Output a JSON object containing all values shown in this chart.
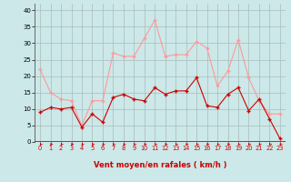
{
  "x": [
    0,
    1,
    2,
    3,
    4,
    5,
    6,
    7,
    8,
    9,
    10,
    11,
    12,
    13,
    14,
    15,
    16,
    17,
    18,
    19,
    20,
    21,
    22,
    23
  ],
  "wind_mean": [
    9,
    10.5,
    10,
    10.5,
    4.5,
    8.5,
    6,
    13.5,
    14.5,
    13,
    12.5,
    16.5,
    14.5,
    15.5,
    15.5,
    19.5,
    11,
    10.5,
    14.5,
    16.5,
    9.5,
    13,
    7,
    1
  ],
  "wind_gust": [
    22,
    15,
    13,
    12.5,
    5,
    12.5,
    12.5,
    27,
    26,
    26,
    31.5,
    37,
    26,
    26.5,
    26.5,
    30.5,
    28.5,
    17,
    21.5,
    31,
    19.5,
    12.5,
    8.5,
    8.5
  ],
  "mean_color": "#cc0000",
  "gust_color": "#ff9999",
  "bg_color": "#cce8e8",
  "grid_color": "#aabbbb",
  "xlabel": "Vent moyen/en rafales ( km/h )",
  "xlabel_color": "#cc0000",
  "yticks": [
    0,
    5,
    10,
    15,
    20,
    25,
    30,
    35,
    40
  ],
  "xticks": [
    0,
    1,
    2,
    3,
    4,
    5,
    6,
    7,
    8,
    9,
    10,
    11,
    12,
    13,
    14,
    15,
    16,
    17,
    18,
    19,
    20,
    21,
    22,
    23
  ],
  "ylim": [
    0,
    42
  ],
  "xlim": [
    -0.5,
    23.5
  ]
}
